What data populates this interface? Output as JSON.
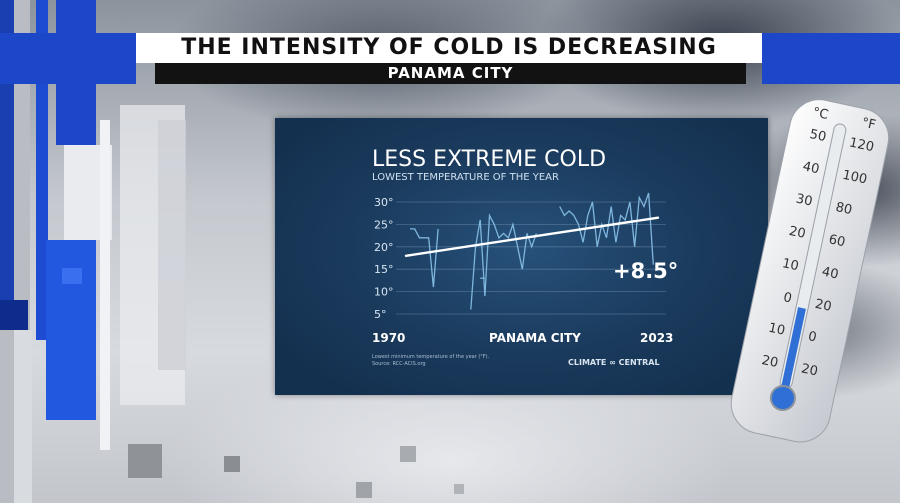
{
  "headline": "THE INTENSITY OF COLD IS DECREASING",
  "location": "PANAMA CITY",
  "chart_data": {
    "type": "line",
    "title": "LESS EXTREME COLD",
    "subtitle": "LOWEST TEMPERATURE OF THE YEAR",
    "x_start_label": "1970",
    "x_end_label": "2023",
    "center_label": "PANAMA CITY",
    "y_ticks": [
      "30°",
      "25°",
      "20°",
      "15°",
      "10°",
      "5°"
    ],
    "ylim": [
      5,
      30
    ],
    "xlim": [
      1970,
      2023
    ],
    "change_label": "+8.5°",
    "footnote_1": "Lowest minimum temperature of the year (°F).",
    "footnote_2": "Source: RCC-ACIS.org",
    "brand": "CLIMATE ∞ CENTRAL",
    "series": [
      {
        "x": [
          1970,
          1971,
          1972,
          1973,
          1974,
          1975,
          1976,
          1977,
          1978,
          1979,
          1980,
          1981,
          1982,
          1983,
          1984,
          1985,
          1986,
          1987,
          1988,
          1989,
          1990,
          1991,
          1992,
          1993,
          1994,
          1995,
          1996,
          1997,
          1998,
          1999,
          2000,
          2001,
          2002,
          2003,
          2004,
          2005,
          2006,
          2007,
          2008,
          2009,
          2010,
          2011,
          2012,
          2013,
          2014,
          2015,
          2016,
          2017,
          2018,
          2019,
          2020,
          2021,
          2022,
          2023
        ],
        "values": [
          24,
          24,
          22,
          22,
          22,
          11,
          24,
          null,
          null,
          12,
          null,
          null,
          null,
          6,
          20,
          26,
          9,
          27,
          25,
          22,
          23,
          22,
          25,
          20,
          15,
          23,
          20,
          23,
          null,
          null,
          null,
          null,
          29,
          27,
          28,
          27,
          25,
          21,
          27,
          30,
          20,
          25,
          22,
          29,
          21,
          27,
          26,
          30,
          20,
          31,
          29,
          32,
          16,
          null
        ]
      },
      {
        "x": [
          1985,
          1986
        ],
        "values": [
          13,
          13
        ]
      }
    ],
    "trend": {
      "x": [
        1970,
        2023
      ],
      "values": [
        18,
        26.5
      ]
    }
  },
  "thermometer": {
    "celsius_label": "°C",
    "fahrenheit_label": "°F",
    "celsius_ticks": [
      "50",
      "40",
      "30",
      "20",
      "10",
      "0",
      "10",
      "20"
    ],
    "fahrenheit_ticks": [
      "120",
      "100",
      "80",
      "60",
      "40",
      "20",
      "0",
      "20"
    ]
  }
}
